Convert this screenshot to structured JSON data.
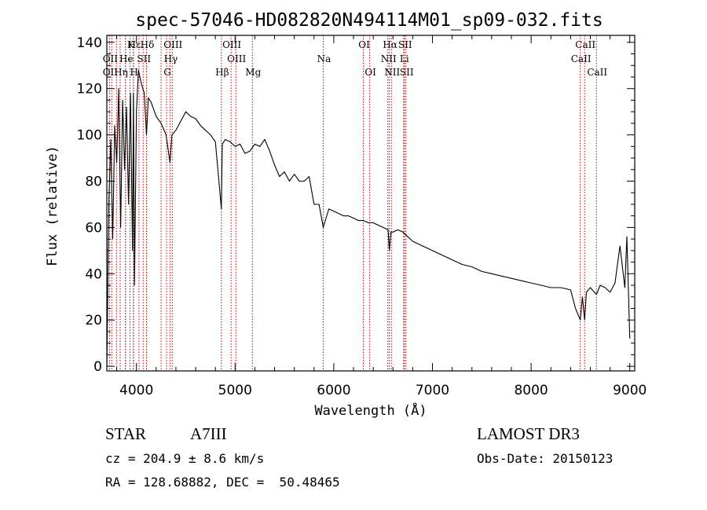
{
  "chart_data": {
    "type": "line",
    "title": "spec-57046-HD082820N494114M01_sp09-032.fits",
    "xlabel": "Wavelength (Å)",
    "ylabel": "Flux (relative)",
    "xlim": [
      3700,
      9050
    ],
    "ylim": [
      -2,
      143
    ],
    "xticks": [
      4000,
      5000,
      6000,
      7000,
      8000,
      9000
    ],
    "yticks": [
      0,
      20,
      40,
      60,
      80,
      100,
      120,
      140
    ],
    "series": [
      {
        "name": "flux",
        "x": [
          3700,
          3720,
          3740,
          3760,
          3780,
          3800,
          3820,
          3840,
          3860,
          3880,
          3900,
          3920,
          3940,
          3960,
          3970,
          3980,
          4000,
          4020,
          4050,
          4080,
          4102,
          4120,
          4150,
          4200,
          4250,
          4300,
          4340,
          4360,
          4400,
          4450,
          4500,
          4550,
          4600,
          4650,
          4700,
          4750,
          4800,
          4861,
          4870,
          4900,
          4950,
          5000,
          5050,
          5100,
          5150,
          5200,
          5250,
          5300,
          5350,
          5400,
          5450,
          5500,
          5550,
          5600,
          5650,
          5700,
          5750,
          5800,
          5850,
          5893,
          5950,
          6000,
          6050,
          6100,
          6150,
          6200,
          6250,
          6300,
          6350,
          6400,
          6450,
          6500,
          6550,
          6563,
          6580,
          6600,
          6650,
          6700,
          6750,
          6800,
          6850,
          6900,
          6950,
          7000,
          7100,
          7200,
          7300,
          7400,
          7500,
          7600,
          7700,
          7800,
          7900,
          8000,
          8100,
          8200,
          8300,
          8400,
          8450,
          8498,
          8520,
          8542,
          8560,
          8600,
          8662,
          8700,
          8750,
          8800,
          8850,
          8900,
          8950,
          8970,
          9000
        ],
        "values": [
          0,
          70,
          98,
          55,
          104,
          88,
          120,
          60,
          115,
          85,
          112,
          70,
          118,
          50,
          118,
          35,
          110,
          128,
          122,
          118,
          100,
          116,
          114,
          108,
          105,
          100,
          88,
          100,
          102,
          106,
          110,
          108,
          107,
          104,
          102,
          100,
          97,
          68,
          96,
          98,
          97,
          95,
          96,
          92,
          93,
          96,
          95,
          98,
          93,
          87,
          82,
          84,
          80,
          83,
          80,
          80,
          82,
          70,
          70,
          60,
          68,
          67,
          66,
          65,
          65,
          64,
          63,
          63,
          62,
          62,
          61,
          60,
          59,
          50,
          58,
          58,
          59,
          58,
          56,
          54,
          53,
          52,
          51,
          50,
          48,
          46,
          44,
          43,
          41,
          40,
          39,
          38,
          37,
          36,
          35,
          34,
          34,
          33,
          25,
          20,
          30,
          20,
          32,
          34,
          31,
          35,
          34,
          32,
          36,
          52,
          34,
          56,
          12
        ]
      }
    ],
    "line_markers": [
      {
        "label": "Hε",
        "wavelength": 3970,
        "row": 1
      },
      {
        "label": "K",
        "wavelength": 3934,
        "row": 1
      },
      {
        "label": "Hδ",
        "wavelength": 4102,
        "row": 1
      },
      {
        "label": "OIII",
        "wavelength": 4363,
        "row": 1
      },
      {
        "label": "OIII",
        "wavelength": 4959,
        "row": 1
      },
      {
        "label": "OI",
        "wavelength": 6300,
        "row": 1
      },
      {
        "label": "Hα",
        "wavelength": 6563,
        "row": 1
      },
      {
        "label": "SII",
        "wavelength": 6716,
        "row": 1
      },
      {
        "label": "CaII",
        "wavelength": 8542,
        "row": 1
      },
      {
        "label": "OII",
        "wavelength": 3727,
        "row": 2
      },
      {
        "label": "He",
        "wavelength": 3889,
        "row": 2
      },
      {
        "label": "SII",
        "wavelength": 4068,
        "row": 2
      },
      {
        "label": "Hγ",
        "wavelength": 4340,
        "row": 2
      },
      {
        "label": "OIII",
        "wavelength": 5007,
        "row": 2
      },
      {
        "label": "Na",
        "wavelength": 5893,
        "row": 2
      },
      {
        "label": "NII",
        "wavelength": 6548,
        "row": 2
      },
      {
        "label": "Li",
        "wavelength": 6708,
        "row": 2
      },
      {
        "label": "CaII",
        "wavelength": 8498,
        "row": 2
      },
      {
        "label": "OII",
        "wavelength": 3727,
        "row": 3
      },
      {
        "label": "Hη",
        "wavelength": 3835,
        "row": 3
      },
      {
        "label": "H",
        "wavelength": 3968,
        "row": 3
      },
      {
        "label": "G",
        "wavelength": 4305,
        "row": 3
      },
      {
        "label": "Hβ",
        "wavelength": 4861,
        "row": 3
      },
      {
        "label": "Mg",
        "wavelength": 5175,
        "row": 3
      },
      {
        "label": "OI",
        "wavelength": 6364,
        "row": 3
      },
      {
        "label": "NII",
        "wavelength": 6584,
        "row": 3
      },
      {
        "label": "SII",
        "wavelength": 6731,
        "row": 3
      },
      {
        "label": "CaII",
        "wavelength": 8662,
        "row": 3
      }
    ],
    "marker_extra_lines": [
      3750,
      3798,
      3889,
      4026,
      4250
    ],
    "colors": {
      "spectrum": "#000000",
      "markers": "#cc0000",
      "axes": "#000000"
    }
  },
  "footer": {
    "object_class": "STAR",
    "subclass": "A7III",
    "survey": "LAMOST DR3",
    "cz": "cz = 204.9 ± 8.6 km/s",
    "obs_date": "Obs-Date: 20150123",
    "coords": "RA = 128.68882, DEC =  50.48465"
  }
}
